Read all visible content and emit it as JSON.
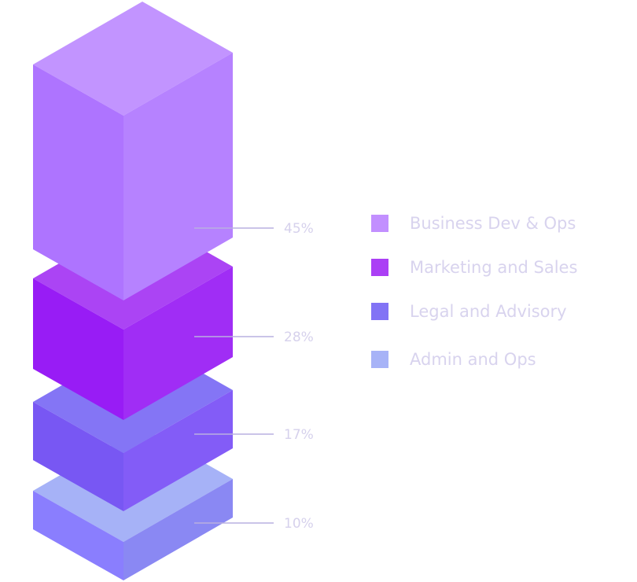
{
  "chart_data": {
    "type": "isometric-stacked-blocks",
    "title": "",
    "series": [
      {
        "name": "Business Dev & Ops",
        "value": 45,
        "label": "45%",
        "color": "#c28fff",
        "faces": {
          "left": "#ae74ff",
          "right": "#b682ff",
          "top": "#c294ff"
        }
      },
      {
        "name": "Marketing and Sales",
        "value": 28,
        "label": "28%",
        "color": "#ab3ff5",
        "faces": {
          "left": "#981cf5",
          "right": "#a02df5",
          "top": "#ab44f4"
        }
      },
      {
        "name": "Legal and Advisory",
        "value": 17,
        "label": "17%",
        "color": "#8273f5",
        "faces": {
          "left": "#7857f3",
          "right": "#835cf7",
          "top": "#8475f5"
        }
      },
      {
        "name": "Admin and Ops",
        "value": 10,
        "label": "10%",
        "color": "#a7b3f7",
        "faces": {
          "left": "#8a7efe",
          "right": "#8a88f3",
          "top": "#a6b2f7"
        }
      }
    ],
    "legend_position": "right",
    "leader_line_color": "#b9b0e0",
    "label_color": "#d6d1ec"
  }
}
